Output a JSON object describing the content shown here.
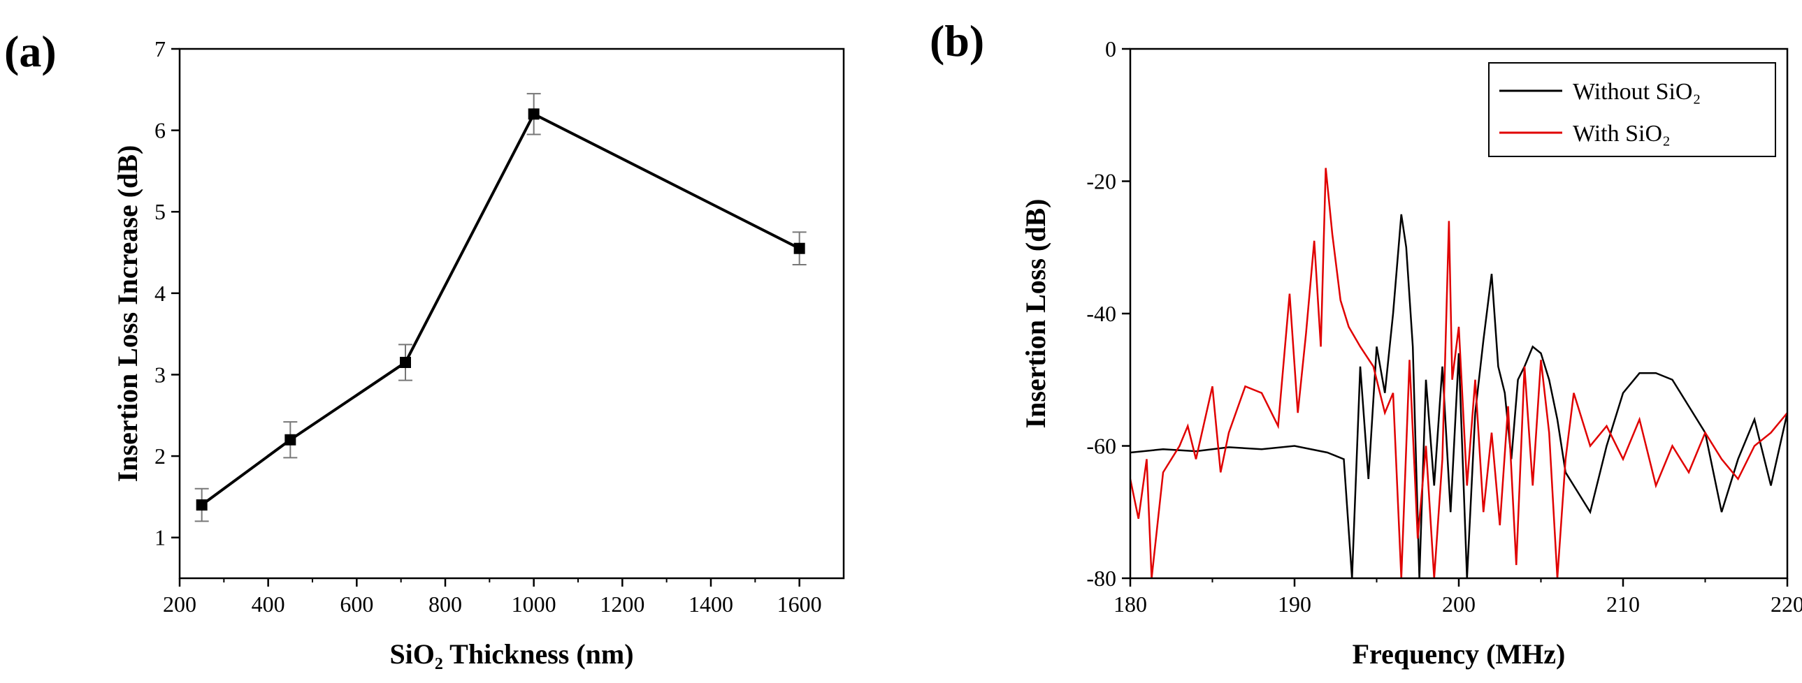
{
  "chart_data": [
    {
      "panel": "(a)",
      "type": "line",
      "xlabel": "SiO₂ Thickness (nm)",
      "ylabel": "Insertion Loss Increase (dB)",
      "xlim": [
        200,
        1700
      ],
      "ylim": [
        0.5,
        7
      ],
      "xticks": [
        200,
        400,
        600,
        800,
        1000,
        1200,
        1400,
        1600
      ],
      "yticks": [
        1,
        2,
        3,
        4,
        5,
        6,
        7
      ],
      "series": [
        {
          "name": "Insertion Loss Increase",
          "x": [
            250,
            450,
            710,
            1000,
            1600
          ],
          "y": [
            1.4,
            2.2,
            3.15,
            6.2,
            4.55
          ],
          "yerr": [
            0.2,
            0.22,
            0.22,
            0.25,
            0.2
          ],
          "color": "#000000",
          "marker": "square"
        }
      ]
    },
    {
      "panel": "(b)",
      "type": "line",
      "xlabel": "Frequency (MHz)",
      "ylabel": "Insertion Loss (dB)",
      "xlim": [
        180,
        220
      ],
      "ylim": [
        -80,
        0
      ],
      "xticks": [
        180,
        190,
        200,
        210,
        220
      ],
      "yticks": [
        -80,
        -60,
        -40,
        -20,
        0
      ],
      "legend_position": "top-right",
      "series": [
        {
          "name": "Without SiO₂",
          "color": "#000000",
          "x": [
            180,
            182,
            184,
            186,
            188,
            190,
            192,
            193,
            193.5,
            194,
            194.5,
            195,
            195.5,
            196,
            196.5,
            196.8,
            197.2,
            197.6,
            198,
            198.5,
            199,
            199.5,
            200,
            200.5,
            201,
            201.5,
            202,
            202.4,
            202.8,
            203.2,
            203.6,
            204,
            204.5,
            205,
            205.5,
            206,
            206.5,
            207,
            208,
            209,
            210,
            211,
            212,
            213,
            214,
            215,
            216,
            217,
            218,
            219,
            220
          ],
          "y": [
            -61,
            -60.5,
            -60.8,
            -60.2,
            -60.5,
            -60,
            -61,
            -62,
            -80,
            -48,
            -65,
            -45,
            -52,
            -40,
            -25,
            -30,
            -45,
            -80,
            -50,
            -66,
            -48,
            -70,
            -46,
            -80,
            -55,
            -44,
            -34,
            -48,
            -52,
            -62,
            -50,
            -48,
            -45,
            -46,
            -50,
            -56,
            -64,
            -66,
            -70,
            -60,
            -52,
            -49,
            -49,
            -50,
            -54,
            -58,
            -70,
            -62,
            -56,
            -66,
            -55
          ]
        },
        {
          "name": "With SiO₂",
          "color": "#e00000",
          "x": [
            180,
            180.5,
            181,
            181.3,
            182,
            183,
            183.5,
            184,
            185,
            185.5,
            186,
            187,
            188,
            189,
            189.7,
            190.2,
            190.7,
            191.2,
            191.6,
            191.9,
            192.3,
            192.8,
            193.3,
            194,
            194.8,
            195.5,
            196,
            196.5,
            197,
            197.5,
            198,
            198.5,
            199,
            199.4,
            199.6,
            200,
            200.5,
            201,
            201.5,
            202,
            202.5,
            203,
            203.5,
            204,
            204.5,
            205,
            205.5,
            206,
            206.5,
            207,
            208,
            209,
            210,
            211,
            212,
            213,
            214,
            215,
            216,
            217,
            218,
            219,
            220
          ],
          "y": [
            -65,
            -71,
            -62,
            -80,
            -64,
            -60,
            -57,
            -62,
            -51,
            -64,
            -58,
            -51,
            -52,
            -57,
            -37,
            -55,
            -43,
            -29,
            -45,
            -18,
            -28,
            -38,
            -42,
            -45,
            -48,
            -55,
            -52,
            -80,
            -47,
            -74,
            -60,
            -80,
            -62,
            -26,
            -50,
            -42,
            -66,
            -50,
            -70,
            -58,
            -72,
            -54,
            -78,
            -48,
            -66,
            -47,
            -58,
            -80,
            -62,
            -52,
            -60,
            -57,
            -62,
            -56,
            -66,
            -60,
            -64,
            -58,
            -62,
            -65,
            -60,
            -58,
            -55
          ]
        }
      ]
    }
  ]
}
